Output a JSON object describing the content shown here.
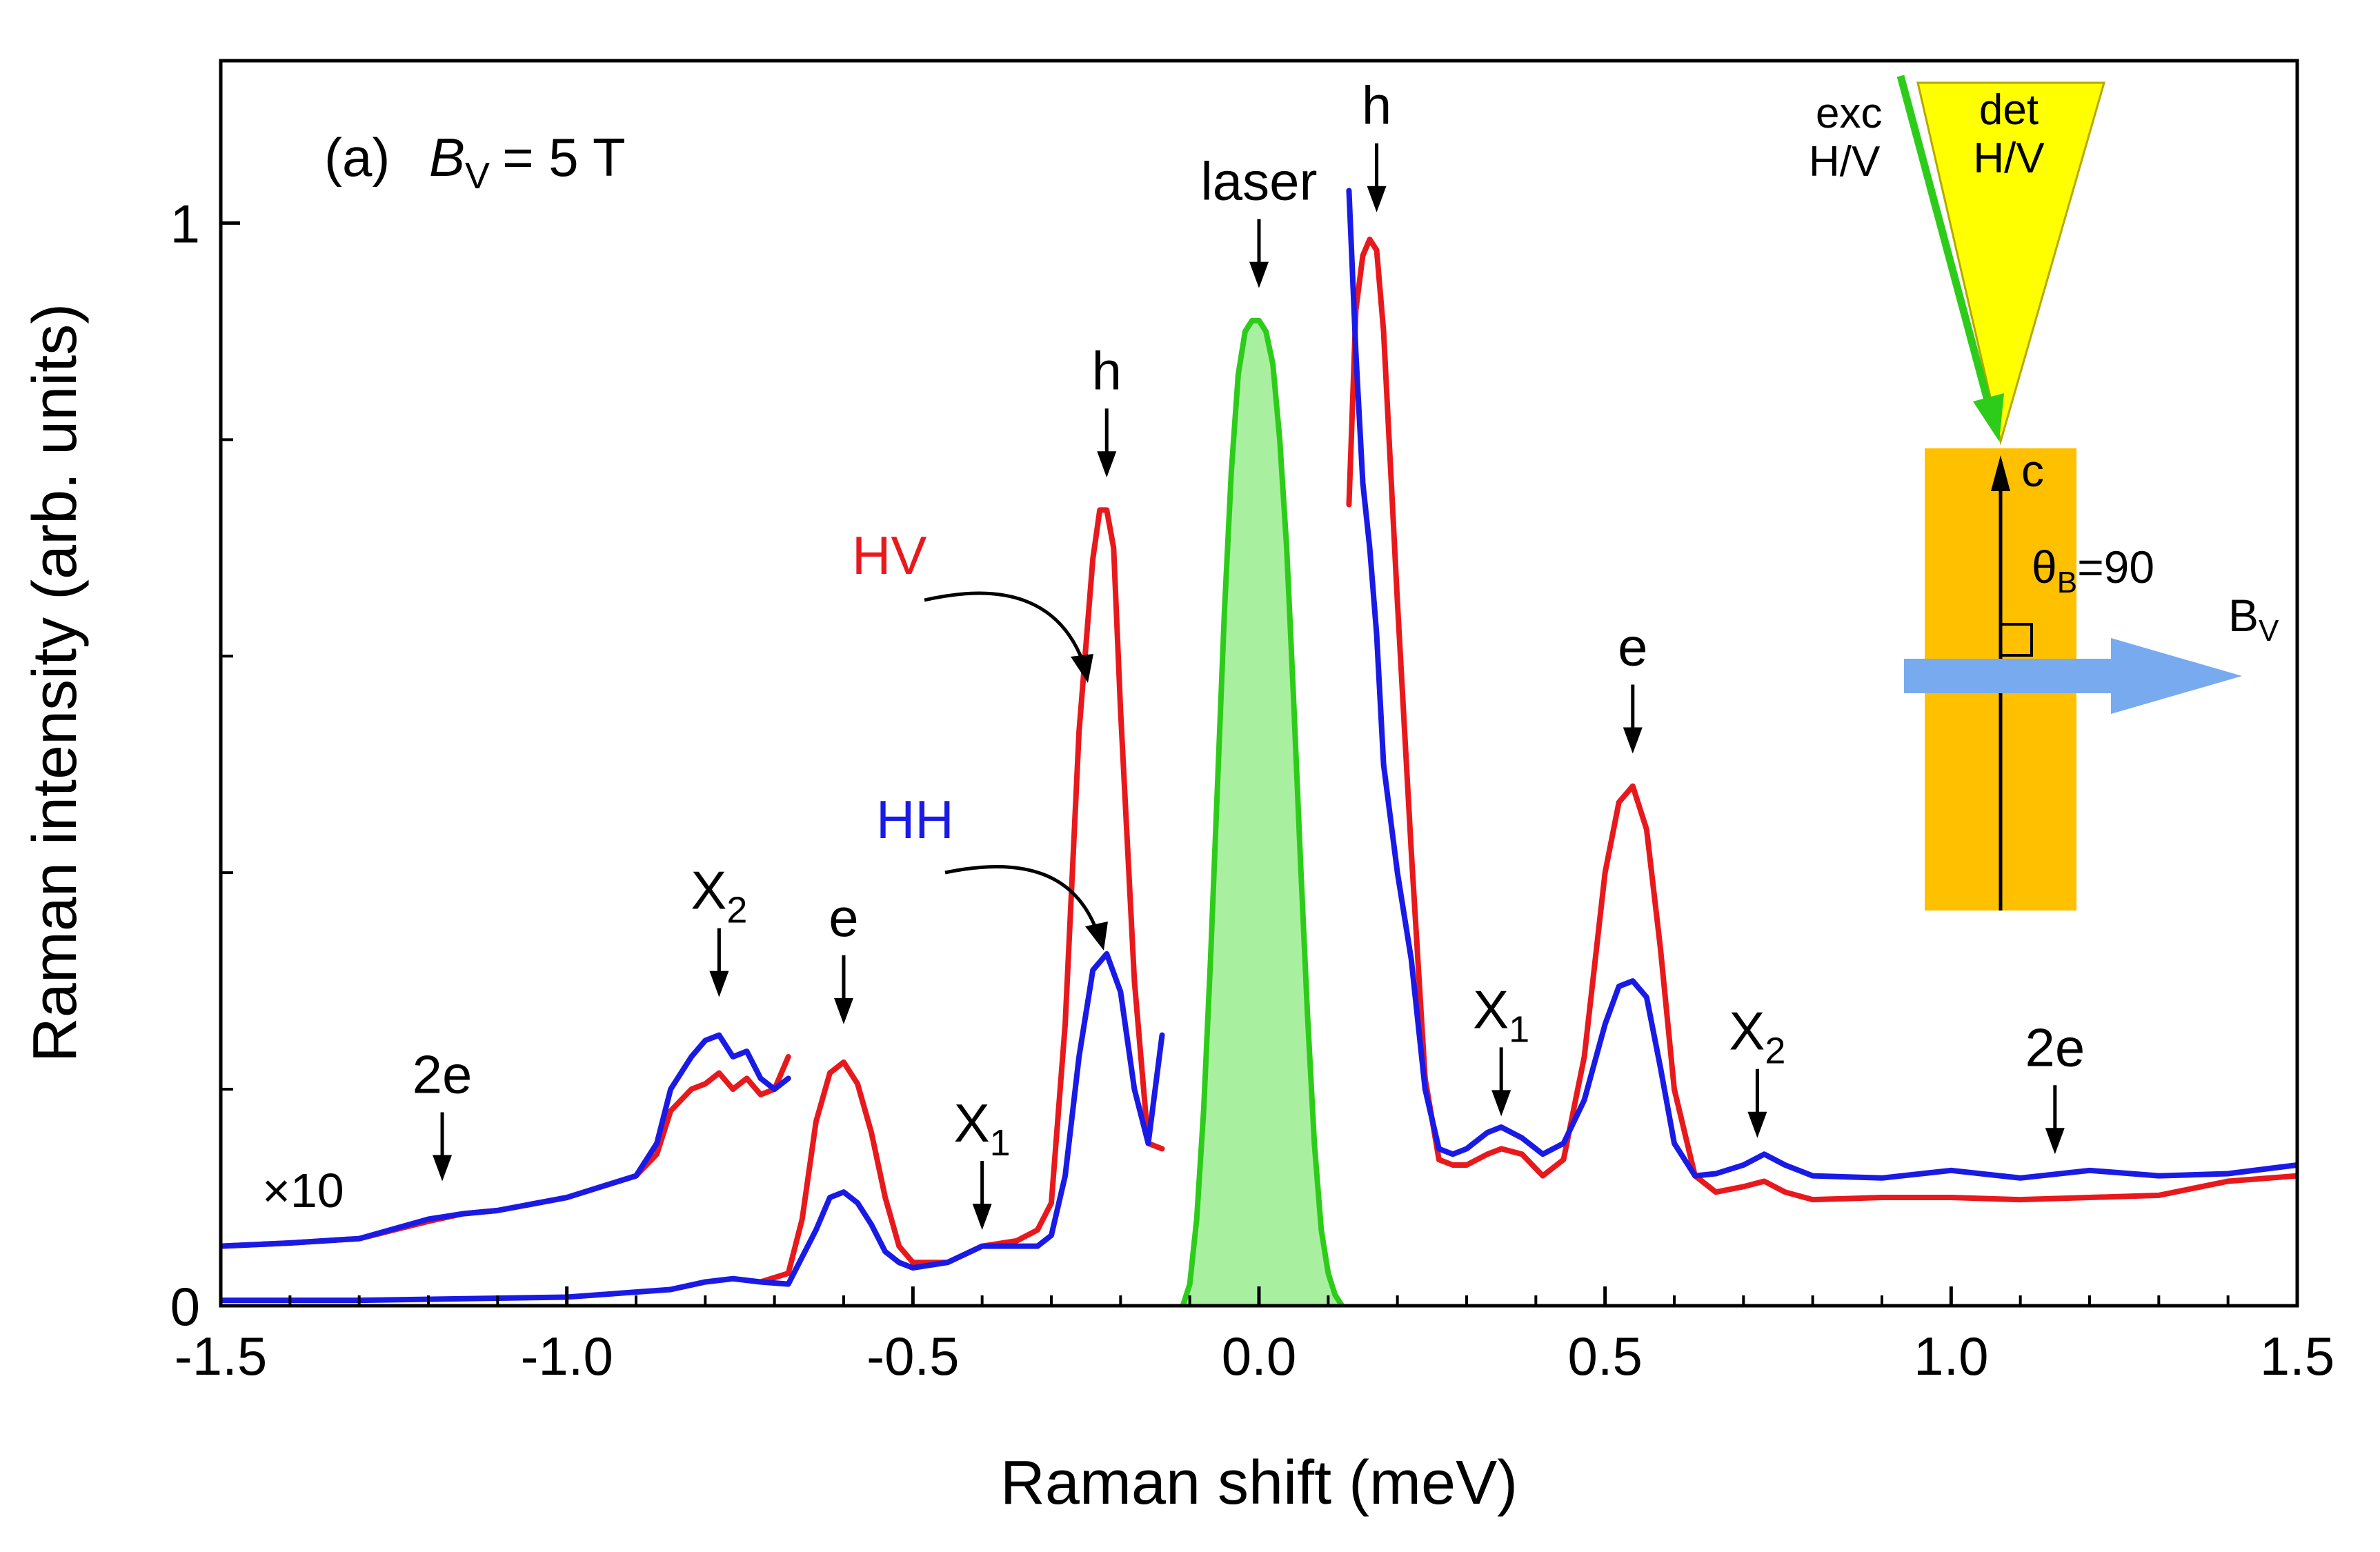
{
  "chart_data": {
    "type": "line",
    "panel_label": "(a)",
    "field_label": {
      "symbol": "B",
      "sub": "V",
      "rest": "= 5 T"
    },
    "xlabel": "Raman shift (meV)",
    "ylabel": "Raman intensity (arb. units)",
    "xlim": [
      -1.5,
      1.5
    ],
    "ylim": [
      0,
      1.15
    ],
    "xticks": [
      -1.5,
      -1.0,
      -0.5,
      0.0,
      0.5,
      1.0,
      1.5
    ],
    "xtick_labels": [
      "-1.5",
      "-1.0",
      "-0.5",
      "0.0",
      "0.5",
      "1.0",
      "1.5"
    ],
    "yticks_labeled": [
      0,
      1
    ],
    "ytick_labels": [
      "0",
      "1"
    ],
    "yticks_minor": [
      0.2,
      0.4,
      0.6,
      0.8
    ],
    "grid": false,
    "scale_note": "×10",
    "colors": {
      "HV": "#e8191c",
      "HH": "#1a1ae6",
      "laser_line": "#2ecc1a",
      "laser_fill": "#a8f0a0",
      "inset_bar": "#ffc000",
      "inset_cone": "#ffff00",
      "inset_arrow_b": "#78aaf0",
      "inset_arrow_exc": "#2ecc1a"
    },
    "series": [
      {
        "name": "HV",
        "color": "#e8191c",
        "segments": [
          {
            "x": [
              -1.5,
              -1.4,
              -1.3,
              -1.2,
              -1.15,
              -1.1,
              -1.0,
              -0.95,
              -0.9,
              -0.87,
              -0.85,
              -0.82,
              -0.8,
              -0.78,
              -0.76,
              -0.74,
              -0.72,
              -0.7,
              -0.68
            ],
            "y": [
              0.055,
              0.058,
              0.062,
              0.078,
              0.085,
              0.088,
              0.1,
              0.11,
              0.12,
              0.14,
              0.18,
              0.2,
              0.205,
              0.215,
              0.2,
              0.21,
              0.195,
              0.2,
              0.23
            ]
          },
          {
            "x": [
              -0.72,
              -0.68,
              -0.66,
              -0.64,
              -0.62,
              -0.6,
              -0.58,
              -0.56,
              -0.54,
              -0.52,
              -0.5,
              -0.45,
              -0.4,
              -0.35,
              -0.32,
              -0.3,
              -0.28,
              -0.26,
              -0.24,
              -0.23,
              -0.22,
              -0.21,
              -0.2,
              -0.18,
              -0.16,
              -0.14
            ],
            "y": [
              0.022,
              0.03,
              0.08,
              0.17,
              0.215,
              0.225,
              0.205,
              0.16,
              0.1,
              0.055,
              0.04,
              0.04,
              0.055,
              0.06,
              0.07,
              0.095,
              0.26,
              0.53,
              0.69,
              0.735,
              0.735,
              0.7,
              0.55,
              0.3,
              0.15,
              0.145
            ]
          },
          {
            "x": [
              0.13,
              0.14,
              0.15,
              0.16,
              0.17,
              0.18,
              0.2,
              0.22,
              0.24,
              0.26,
              0.28,
              0.3,
              0.33,
              0.35,
              0.38,
              0.41,
              0.44,
              0.47,
              0.5,
              0.52,
              0.54,
              0.56,
              0.58,
              0.6,
              0.63,
              0.66,
              0.7,
              0.73,
              0.76,
              0.8,
              0.9,
              1.0,
              1.1,
              1.2,
              1.3,
              1.4,
              1.5
            ],
            "y": [
              0.74,
              0.92,
              0.97,
              0.985,
              0.975,
              0.9,
              0.65,
              0.42,
              0.21,
              0.135,
              0.13,
              0.13,
              0.14,
              0.145,
              0.14,
              0.12,
              0.135,
              0.23,
              0.4,
              0.465,
              0.48,
              0.44,
              0.33,
              0.2,
              0.12,
              0.105,
              0.11,
              0.115,
              0.105,
              0.098,
              0.1,
              0.1,
              0.098,
              0.1,
              0.102,
              0.115,
              0.12
            ]
          }
        ]
      },
      {
        "name": "HH",
        "color": "#1a1ae6",
        "segments": [
          {
            "x": [
              -1.5,
              -1.4,
              -1.3,
              -1.2,
              -1.15,
              -1.1,
              -1.0,
              -0.95,
              -0.9,
              -0.87,
              -0.85,
              -0.82,
              -0.8,
              -0.78,
              -0.76,
              -0.74,
              -0.72,
              -0.7,
              -0.68
            ],
            "y": [
              0.055,
              0.058,
              0.062,
              0.08,
              0.085,
              0.088,
              0.1,
              0.11,
              0.12,
              0.15,
              0.2,
              0.23,
              0.245,
              0.25,
              0.23,
              0.235,
              0.21,
              0.2,
              0.21
            ]
          },
          {
            "x": [
              -1.5,
              -1.3,
              -1.0,
              -0.85,
              -0.8,
              -0.76,
              -0.72,
              -0.68,
              -0.64,
              -0.62,
              -0.6,
              -0.58,
              -0.56,
              -0.54,
              -0.52,
              -0.5,
              -0.45,
              -0.4,
              -0.35,
              -0.32,
              -0.3,
              -0.28,
              -0.26,
              -0.24,
              -0.22,
              -0.2,
              -0.18,
              -0.16,
              -0.14
            ],
            "y": [
              0.005,
              0.005,
              0.008,
              0.015,
              0.022,
              0.025,
              0.022,
              0.02,
              0.07,
              0.1,
              0.105,
              0.095,
              0.075,
              0.05,
              0.04,
              0.035,
              0.04,
              0.055,
              0.055,
              0.055,
              0.065,
              0.12,
              0.23,
              0.31,
              0.325,
              0.29,
              0.2,
              0.15,
              0.25
            ]
          },
          {
            "x": [
              0.13,
              0.14,
              0.15,
              0.16,
              0.17,
              0.18,
              0.2,
              0.22,
              0.24,
              0.26,
              0.28,
              0.3,
              0.33,
              0.35,
              0.38,
              0.41,
              0.44,
              0.47,
              0.5,
              0.52,
              0.54,
              0.56,
              0.58,
              0.6,
              0.63,
              0.66,
              0.7,
              0.73,
              0.76,
              0.8,
              0.9,
              1.0,
              1.1,
              1.2,
              1.3,
              1.4,
              1.5
            ],
            "y": [
              1.03,
              0.88,
              0.76,
              0.7,
              0.62,
              0.5,
              0.4,
              0.32,
              0.2,
              0.145,
              0.14,
              0.145,
              0.16,
              0.165,
              0.155,
              0.14,
              0.15,
              0.19,
              0.26,
              0.295,
              0.3,
              0.285,
              0.22,
              0.15,
              0.12,
              0.122,
              0.13,
              0.14,
              0.13,
              0.12,
              0.118,
              0.125,
              0.118,
              0.125,
              0.12,
              0.122,
              0.13
            ]
          }
        ]
      },
      {
        "name": "laser",
        "color": "#2ecc1a",
        "fill": "#a8f0a0",
        "x": [
          -0.11,
          -0.1,
          -0.09,
          -0.08,
          -0.07,
          -0.06,
          -0.05,
          -0.04,
          -0.03,
          -0.02,
          -0.01,
          0.0,
          0.01,
          0.02,
          0.03,
          0.04,
          0.05,
          0.06,
          0.07,
          0.08,
          0.09,
          0.1,
          0.11,
          0.12
        ],
        "y": [
          0.0,
          0.02,
          0.08,
          0.18,
          0.32,
          0.48,
          0.64,
          0.77,
          0.86,
          0.9,
          0.91,
          0.91,
          0.9,
          0.87,
          0.8,
          0.7,
          0.56,
          0.41,
          0.27,
          0.15,
          0.07,
          0.03,
          0.01,
          0.0
        ]
      }
    ],
    "curve_labels": [
      {
        "text": "HV",
        "color": "#e8191c"
      },
      {
        "text": "HH",
        "color": "#1a1ae6"
      }
    ],
    "annotations": [
      {
        "text": "2e",
        "sub": "",
        "x": -1.18,
        "tip": 0.115
      },
      {
        "text": "X",
        "sub": "2",
        "x": -0.78,
        "tip": 0.285
      },
      {
        "text": "e",
        "sub": "",
        "x": -0.6,
        "tip": 0.26
      },
      {
        "text": "X",
        "sub": "1",
        "x": -0.4,
        "tip": 0.07
      },
      {
        "text": "h",
        "sub": "",
        "x": -0.22,
        "tip": 0.765
      },
      {
        "text": "laser",
        "sub": "",
        "x": 0.0,
        "tip": 0.94
      },
      {
        "text": "h",
        "sub": "",
        "x": 0.17,
        "tip": 1.01
      },
      {
        "text": "X",
        "sub": "1",
        "x": 0.35,
        "tip": 0.175
      },
      {
        "text": "e",
        "sub": "",
        "x": 0.54,
        "tip": 0.51
      },
      {
        "text": "X",
        "sub": "2",
        "x": 0.72,
        "tip": 0.155
      },
      {
        "text": "2e",
        "sub": "",
        "x": 1.15,
        "tip": 0.14
      }
    ],
    "inset": {
      "exc_label": "exc",
      "exc_pol": "H/V",
      "det_label": "det",
      "det_pol": "H/V",
      "axis_label": "c",
      "angle_symbol": "θ",
      "angle_sub": "B",
      "angle_value": "=90",
      "field_symbol": "B",
      "field_sub": "V"
    }
  }
}
